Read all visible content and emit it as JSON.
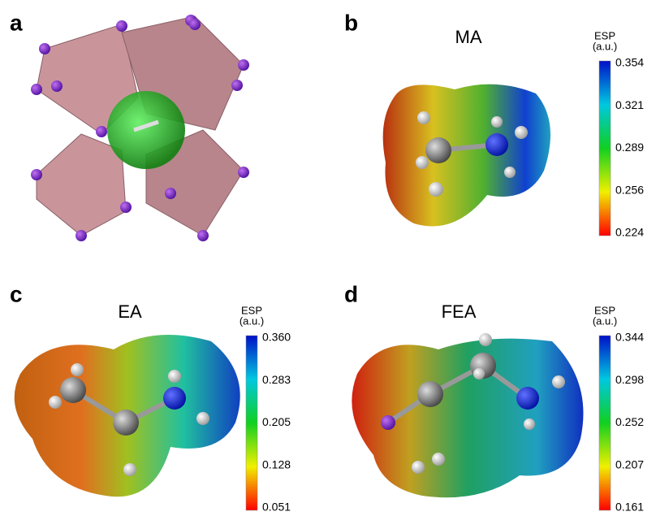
{
  "panels": [
    {
      "label": "a"
    },
    {
      "label": "b",
      "title": "MA",
      "colorbar": {
        "title": "ESP",
        "unit": "(a.u.)",
        "ticks": [
          "0.354",
          "0.321",
          "0.289",
          "0.256",
          "0.224"
        ]
      }
    },
    {
      "label": "c",
      "title": "EA",
      "colorbar": {
        "title": "ESP",
        "unit": "(a.u.)",
        "ticks": [
          "0.360",
          "0.283",
          "0.205",
          "0.128",
          "0.051"
        ]
      }
    },
    {
      "label": "d",
      "title": "FEA",
      "colorbar": {
        "title": "ESP",
        "unit": "(a.u.)",
        "ticks": [
          "0.344",
          "0.298",
          "0.252",
          "0.207",
          "0.161"
        ]
      }
    }
  ]
}
